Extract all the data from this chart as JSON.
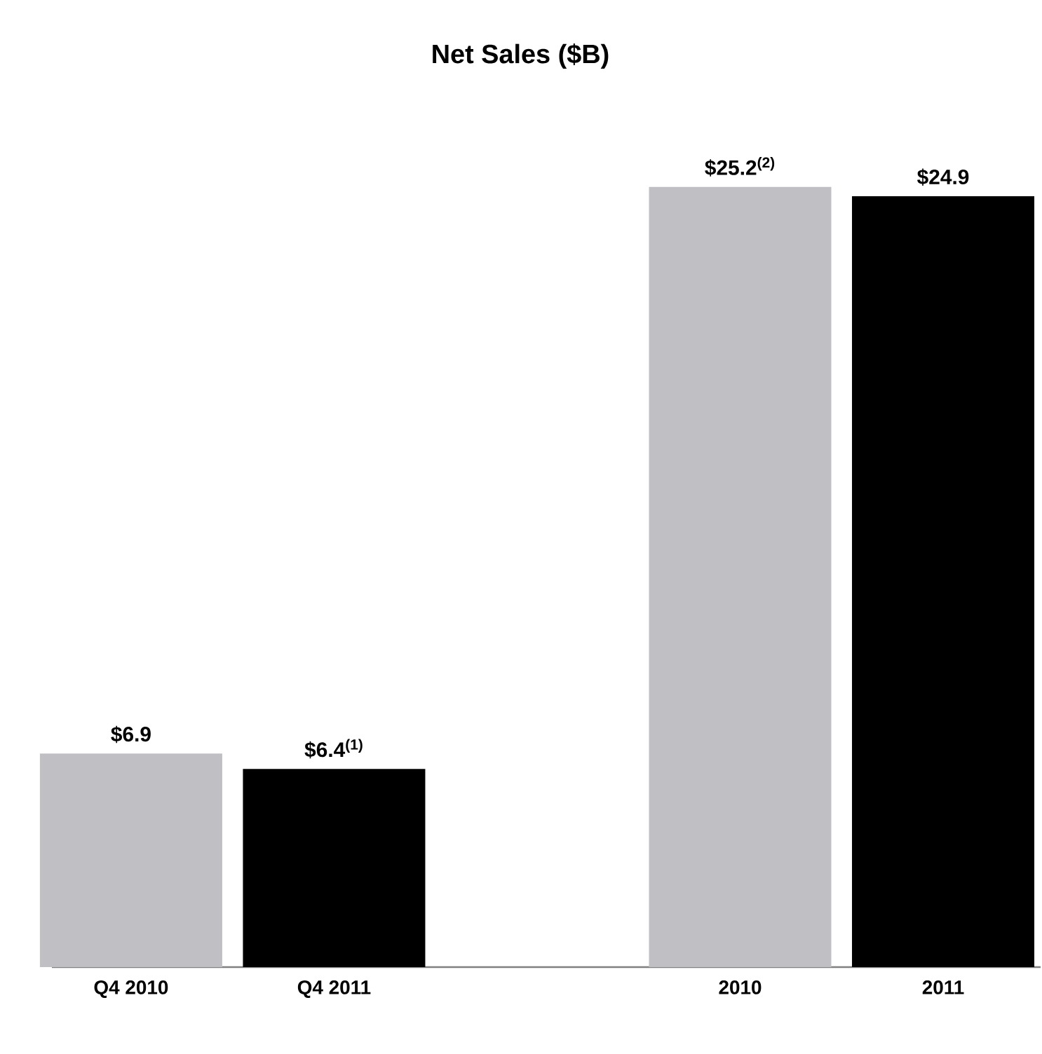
{
  "chart_data": {
    "type": "bar",
    "title": "Net Sales ($B)",
    "categories": [
      "Q4 2010",
      "Q4 2011",
      null,
      "2010",
      "2011"
    ],
    "values": [
      6.9,
      6.4,
      null,
      25.2,
      24.9
    ],
    "colors": [
      "#c0bfc4",
      "#000000",
      null,
      "#c0bfc4",
      "#000000"
    ],
    "value_labels": [
      "$6.9",
      "$6.4$^{(1)}$",
      null,
      "$25.2$^{(2)}$",
      "$24.9"
    ]
  }
}
